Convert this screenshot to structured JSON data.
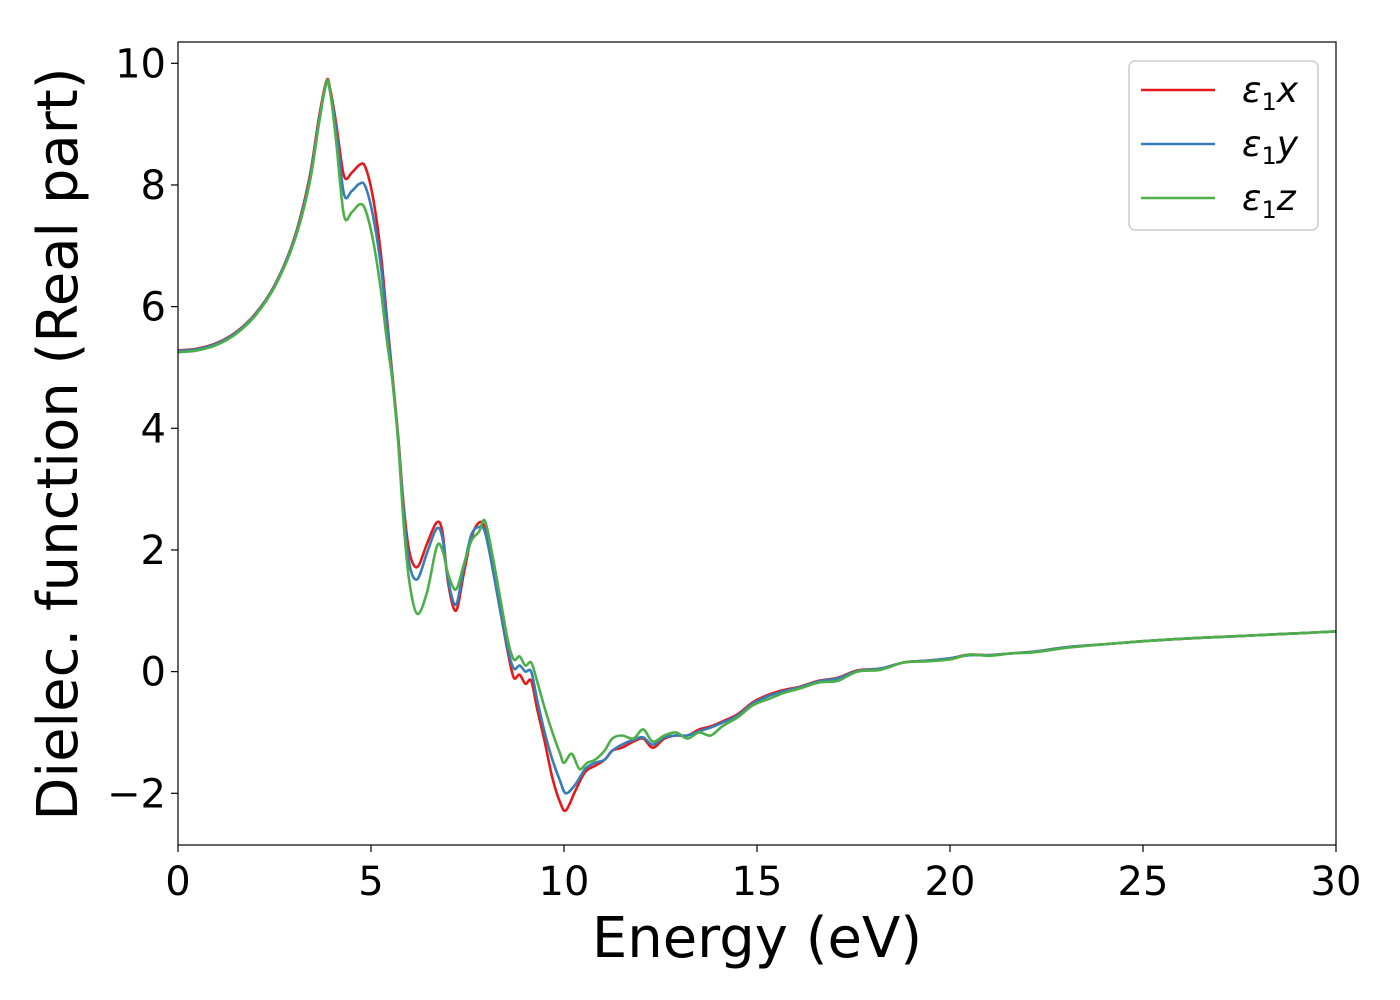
{
  "chart_data": {
    "type": "line",
    "title": "",
    "xlabel": "Energy (eV)",
    "ylabel": "Dielec. function (Real part)",
    "xlim": [
      0,
      30
    ],
    "ylim": [
      -2.85,
      10.35
    ],
    "xticks": [
      0,
      5,
      10,
      15,
      20,
      25,
      30
    ],
    "xtick_labels": [
      "0",
      "5",
      "10",
      "15",
      "20",
      "25",
      "30"
    ],
    "yticks": [
      -2,
      0,
      2,
      4,
      6,
      8,
      10
    ],
    "ytick_labels": [
      "−2",
      "0",
      "2",
      "4",
      "6",
      "8",
      "10"
    ],
    "grid": false,
    "legend_position": "top-right",
    "series": [
      {
        "name": "ε",
        "subscript": "1",
        "suffix": "x",
        "color": "#e41a1c",
        "points": [
          [
            0,
            5.28
          ],
          [
            0.5,
            5.31
          ],
          [
            1.0,
            5.4
          ],
          [
            1.5,
            5.58
          ],
          [
            2.0,
            5.88
          ],
          [
            2.5,
            6.35
          ],
          [
            3.0,
            7.1
          ],
          [
            3.4,
            8.1
          ],
          [
            3.65,
            9.1
          ],
          [
            3.85,
            9.72
          ],
          [
            3.95,
            9.55
          ],
          [
            4.1,
            9.0
          ],
          [
            4.3,
            8.15
          ],
          [
            4.5,
            8.2
          ],
          [
            4.7,
            8.33
          ],
          [
            4.85,
            8.3
          ],
          [
            5.05,
            7.8
          ],
          [
            5.25,
            6.9
          ],
          [
            5.4,
            5.9
          ],
          [
            5.55,
            4.9
          ],
          [
            5.7,
            3.9
          ],
          [
            5.85,
            2.7
          ],
          [
            6.0,
            1.95
          ],
          [
            6.2,
            1.72
          ],
          [
            6.45,
            2.1
          ],
          [
            6.7,
            2.45
          ],
          [
            6.85,
            2.3
          ],
          [
            7.0,
            1.45
          ],
          [
            7.2,
            1.0
          ],
          [
            7.4,
            1.6
          ],
          [
            7.6,
            2.2
          ],
          [
            7.8,
            2.45
          ],
          [
            7.95,
            2.35
          ],
          [
            8.15,
            1.7
          ],
          [
            8.35,
            1.0
          ],
          [
            8.55,
            0.3
          ],
          [
            8.7,
            -0.1
          ],
          [
            8.85,
            -0.05
          ],
          [
            9.0,
            -0.2
          ],
          [
            9.15,
            -0.15
          ],
          [
            9.3,
            -0.6
          ],
          [
            9.5,
            -1.15
          ],
          [
            9.7,
            -1.75
          ],
          [
            9.9,
            -2.15
          ],
          [
            10.05,
            -2.28
          ],
          [
            10.3,
            -1.95
          ],
          [
            10.55,
            -1.65
          ],
          [
            10.8,
            -1.55
          ],
          [
            11.05,
            -1.45
          ],
          [
            11.25,
            -1.3
          ],
          [
            11.5,
            -1.25
          ],
          [
            11.8,
            -1.15
          ],
          [
            12.05,
            -1.1
          ],
          [
            12.3,
            -1.25
          ],
          [
            12.6,
            -1.1
          ],
          [
            12.9,
            -1.05
          ],
          [
            13.2,
            -1.05
          ],
          [
            13.5,
            -0.95
          ],
          [
            13.8,
            -0.9
          ],
          [
            14.1,
            -0.82
          ],
          [
            14.5,
            -0.7
          ],
          [
            14.9,
            -0.5
          ],
          [
            15.3,
            -0.38
          ],
          [
            15.7,
            -0.3
          ],
          [
            16.1,
            -0.25
          ],
          [
            16.6,
            -0.15
          ],
          [
            17.1,
            -0.1
          ],
          [
            17.6,
            0.02
          ],
          [
            18.2,
            0.05
          ],
          [
            18.8,
            0.15
          ],
          [
            19.4,
            0.18
          ],
          [
            20.0,
            0.22
          ],
          [
            20.5,
            0.28
          ],
          [
            21.0,
            0.27
          ],
          [
            21.6,
            0.3
          ],
          [
            22.2,
            0.33
          ],
          [
            23.0,
            0.4
          ],
          [
            24.0,
            0.45
          ],
          [
            25.0,
            0.5
          ],
          [
            26.0,
            0.54
          ],
          [
            27.0,
            0.57
          ],
          [
            28.0,
            0.6
          ],
          [
            29.0,
            0.63
          ],
          [
            30.0,
            0.66
          ]
        ]
      },
      {
        "name": "ε",
        "subscript": "1",
        "suffix": "y",
        "color": "#377eb8",
        "points": [
          [
            0,
            5.27
          ],
          [
            0.5,
            5.3
          ],
          [
            1.0,
            5.39
          ],
          [
            1.5,
            5.57
          ],
          [
            2.0,
            5.87
          ],
          [
            2.5,
            6.34
          ],
          [
            3.0,
            7.08
          ],
          [
            3.4,
            8.05
          ],
          [
            3.65,
            9.05
          ],
          [
            3.85,
            9.68
          ],
          [
            3.95,
            9.5
          ],
          [
            4.1,
            8.9
          ],
          [
            4.3,
            7.85
          ],
          [
            4.5,
            7.9
          ],
          [
            4.7,
            8.02
          ],
          [
            4.85,
            7.98
          ],
          [
            5.05,
            7.5
          ],
          [
            5.25,
            6.7
          ],
          [
            5.4,
            5.8
          ],
          [
            5.55,
            4.85
          ],
          [
            5.7,
            3.85
          ],
          [
            5.85,
            2.6
          ],
          [
            6.0,
            1.75
          ],
          [
            6.2,
            1.52
          ],
          [
            6.45,
            1.95
          ],
          [
            6.7,
            2.35
          ],
          [
            6.85,
            2.2
          ],
          [
            7.0,
            1.5
          ],
          [
            7.2,
            1.1
          ],
          [
            7.4,
            1.7
          ],
          [
            7.6,
            2.25
          ],
          [
            7.8,
            2.38
          ],
          [
            7.95,
            2.3
          ],
          [
            8.15,
            1.7
          ],
          [
            8.35,
            1.0
          ],
          [
            8.55,
            0.35
          ],
          [
            8.7,
            0.05
          ],
          [
            8.85,
            0.1
          ],
          [
            9.0,
            0.0
          ],
          [
            9.15,
            0.0
          ],
          [
            9.3,
            -0.45
          ],
          [
            9.5,
            -1.0
          ],
          [
            9.7,
            -1.45
          ],
          [
            9.9,
            -1.8
          ],
          [
            10.05,
            -2.0
          ],
          [
            10.3,
            -1.85
          ],
          [
            10.55,
            -1.6
          ],
          [
            10.8,
            -1.5
          ],
          [
            11.05,
            -1.45
          ],
          [
            11.25,
            -1.3
          ],
          [
            11.5,
            -1.2
          ],
          [
            11.8,
            -1.12
          ],
          [
            12.05,
            -1.08
          ],
          [
            12.3,
            -1.2
          ],
          [
            12.6,
            -1.08
          ],
          [
            12.9,
            -1.05
          ],
          [
            13.2,
            -1.05
          ],
          [
            13.5,
            -0.98
          ],
          [
            13.8,
            -0.92
          ],
          [
            14.1,
            -0.84
          ],
          [
            14.5,
            -0.72
          ],
          [
            14.9,
            -0.52
          ],
          [
            15.3,
            -0.4
          ],
          [
            15.7,
            -0.32
          ],
          [
            16.1,
            -0.26
          ],
          [
            16.6,
            -0.16
          ],
          [
            17.1,
            -0.11
          ],
          [
            17.6,
            0.01
          ],
          [
            18.2,
            0.05
          ],
          [
            18.8,
            0.15
          ],
          [
            19.4,
            0.18
          ],
          [
            20.0,
            0.22
          ],
          [
            20.5,
            0.27
          ],
          [
            21.0,
            0.27
          ],
          [
            21.6,
            0.3
          ],
          [
            22.2,
            0.33
          ],
          [
            23.0,
            0.4
          ],
          [
            24.0,
            0.45
          ],
          [
            25.0,
            0.5
          ],
          [
            26.0,
            0.54
          ],
          [
            27.0,
            0.57
          ],
          [
            28.0,
            0.6
          ],
          [
            29.0,
            0.63
          ],
          [
            30.0,
            0.66
          ]
        ]
      },
      {
        "name": "ε",
        "subscript": "1",
        "suffix": "z",
        "color": "#4daf4a",
        "points": [
          [
            0,
            5.25
          ],
          [
            0.5,
            5.28
          ],
          [
            1.0,
            5.37
          ],
          [
            1.5,
            5.55
          ],
          [
            2.0,
            5.85
          ],
          [
            2.5,
            6.32
          ],
          [
            3.0,
            7.05
          ],
          [
            3.4,
            8.0
          ],
          [
            3.65,
            9.0
          ],
          [
            3.85,
            9.7
          ],
          [
            3.95,
            9.5
          ],
          [
            4.1,
            8.7
          ],
          [
            4.3,
            7.5
          ],
          [
            4.5,
            7.55
          ],
          [
            4.7,
            7.68
          ],
          [
            4.85,
            7.6
          ],
          [
            5.05,
            7.1
          ],
          [
            5.25,
            6.3
          ],
          [
            5.4,
            5.5
          ],
          [
            5.55,
            4.8
          ],
          [
            5.7,
            3.8
          ],
          [
            5.85,
            2.4
          ],
          [
            6.0,
            1.45
          ],
          [
            6.2,
            0.95
          ],
          [
            6.45,
            1.3
          ],
          [
            6.7,
            2.05
          ],
          [
            6.85,
            2.0
          ],
          [
            7.0,
            1.6
          ],
          [
            7.2,
            1.35
          ],
          [
            7.4,
            1.75
          ],
          [
            7.6,
            2.15
          ],
          [
            7.8,
            2.3
          ],
          [
            7.95,
            2.48
          ],
          [
            8.15,
            1.9
          ],
          [
            8.35,
            1.2
          ],
          [
            8.55,
            0.5
          ],
          [
            8.7,
            0.2
          ],
          [
            8.85,
            0.25
          ],
          [
            9.0,
            0.1
          ],
          [
            9.15,
            0.15
          ],
          [
            9.3,
            -0.15
          ],
          [
            9.5,
            -0.6
          ],
          [
            9.7,
            -1.0
          ],
          [
            9.9,
            -1.35
          ],
          [
            10.0,
            -1.5
          ],
          [
            10.2,
            -1.35
          ],
          [
            10.4,
            -1.6
          ],
          [
            10.6,
            -1.5
          ],
          [
            10.8,
            -1.45
          ],
          [
            11.05,
            -1.3
          ],
          [
            11.25,
            -1.1
          ],
          [
            11.5,
            -1.05
          ],
          [
            11.8,
            -1.1
          ],
          [
            12.05,
            -0.95
          ],
          [
            12.3,
            -1.15
          ],
          [
            12.6,
            -1.05
          ],
          [
            12.9,
            -1.0
          ],
          [
            13.2,
            -1.1
          ],
          [
            13.5,
            -1.0
          ],
          [
            13.8,
            -1.05
          ],
          [
            14.1,
            -0.9
          ],
          [
            14.5,
            -0.75
          ],
          [
            14.9,
            -0.55
          ],
          [
            15.3,
            -0.45
          ],
          [
            15.7,
            -0.35
          ],
          [
            16.1,
            -0.28
          ],
          [
            16.6,
            -0.18
          ],
          [
            17.1,
            -0.15
          ],
          [
            17.6,
            0.0
          ],
          [
            18.2,
            0.03
          ],
          [
            18.8,
            0.15
          ],
          [
            19.4,
            0.17
          ],
          [
            20.0,
            0.2
          ],
          [
            20.5,
            0.28
          ],
          [
            21.0,
            0.26
          ],
          [
            21.6,
            0.3
          ],
          [
            22.2,
            0.32
          ],
          [
            23.0,
            0.39
          ],
          [
            24.0,
            0.45
          ],
          [
            25.0,
            0.5
          ],
          [
            26.0,
            0.54
          ],
          [
            27.0,
            0.57
          ],
          [
            28.0,
            0.6
          ],
          [
            29.0,
            0.63
          ],
          [
            30.0,
            0.66
          ]
        ]
      }
    ]
  }
}
